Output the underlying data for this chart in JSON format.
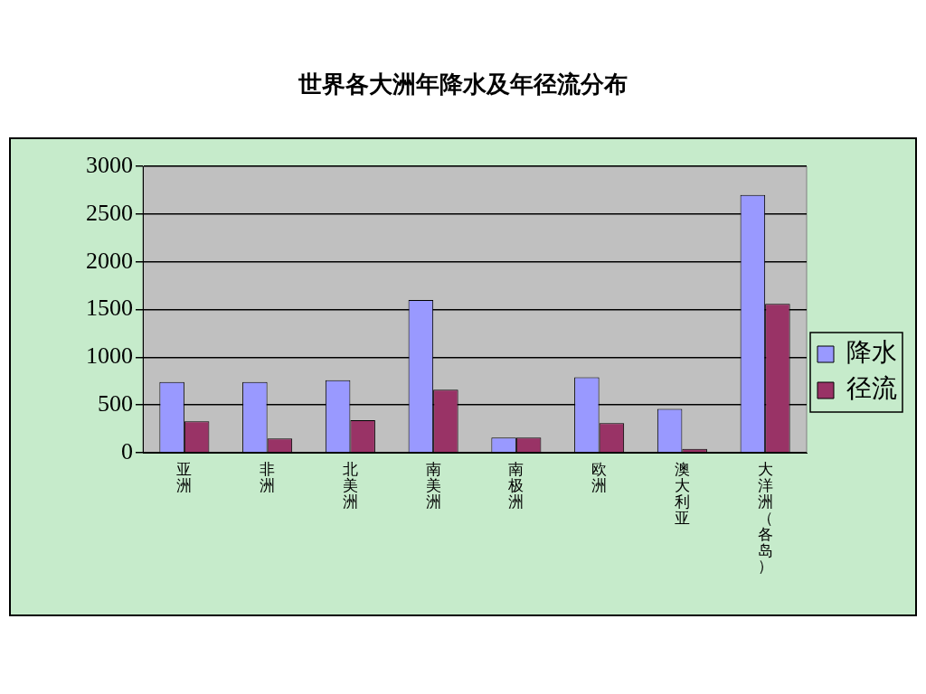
{
  "chart_data": {
    "type": "bar",
    "title": "世界各大洲年降水及年径流分布",
    "categories": [
      "亚洲",
      "非洲",
      "北美洲",
      "南美洲",
      "南极洲",
      "欧洲",
      "澳大利亚",
      "大洋洲（各岛）"
    ],
    "series": [
      {
        "name": "降水",
        "color": "#9999ff",
        "values": [
          740,
          740,
          760,
          1600,
          160,
          790,
          460,
          2700
        ]
      },
      {
        "name": "径流",
        "color": "#993366",
        "values": [
          330,
          150,
          340,
          660,
          160,
          310,
          40,
          1560
        ]
      }
    ],
    "ylim": [
      0,
      3000
    ],
    "yticks": [
      0,
      500,
      1000,
      1500,
      2000,
      2500,
      3000
    ],
    "grid": "y",
    "legend": "right"
  }
}
